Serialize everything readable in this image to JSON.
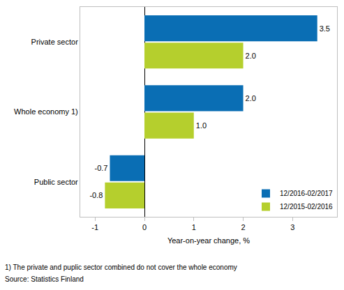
{
  "chart_data": {
    "type": "bar",
    "orientation": "horizontal",
    "categories": [
      "Private sector",
      "Whole economy 1)",
      "Public sector"
    ],
    "series": [
      {
        "name": "12/2016-02/2017",
        "color": "#0a6eb4",
        "values": [
          3.5,
          2.0,
          -0.7
        ],
        "value_labels": [
          "3.5",
          "2.0",
          "-0.7"
        ]
      },
      {
        "name": "12/2015-02/2016",
        "color": "#b5cf2d",
        "values": [
          2.0,
          1.0,
          -0.8
        ],
        "value_labels": [
          "2.0",
          "1.0",
          "-0.8"
        ]
      }
    ],
    "x_label": "Year-on-year change, %",
    "xlim": [
      -1.3,
      3.9
    ],
    "xticks": [
      -1,
      0,
      1,
      2,
      3
    ],
    "grid": false,
    "data_labels": true,
    "legend": "bottom right",
    "annotations": [
      "1) The private and puplic sector combined do not cover the whole economy",
      "Source: Statistics Finland"
    ]
  }
}
